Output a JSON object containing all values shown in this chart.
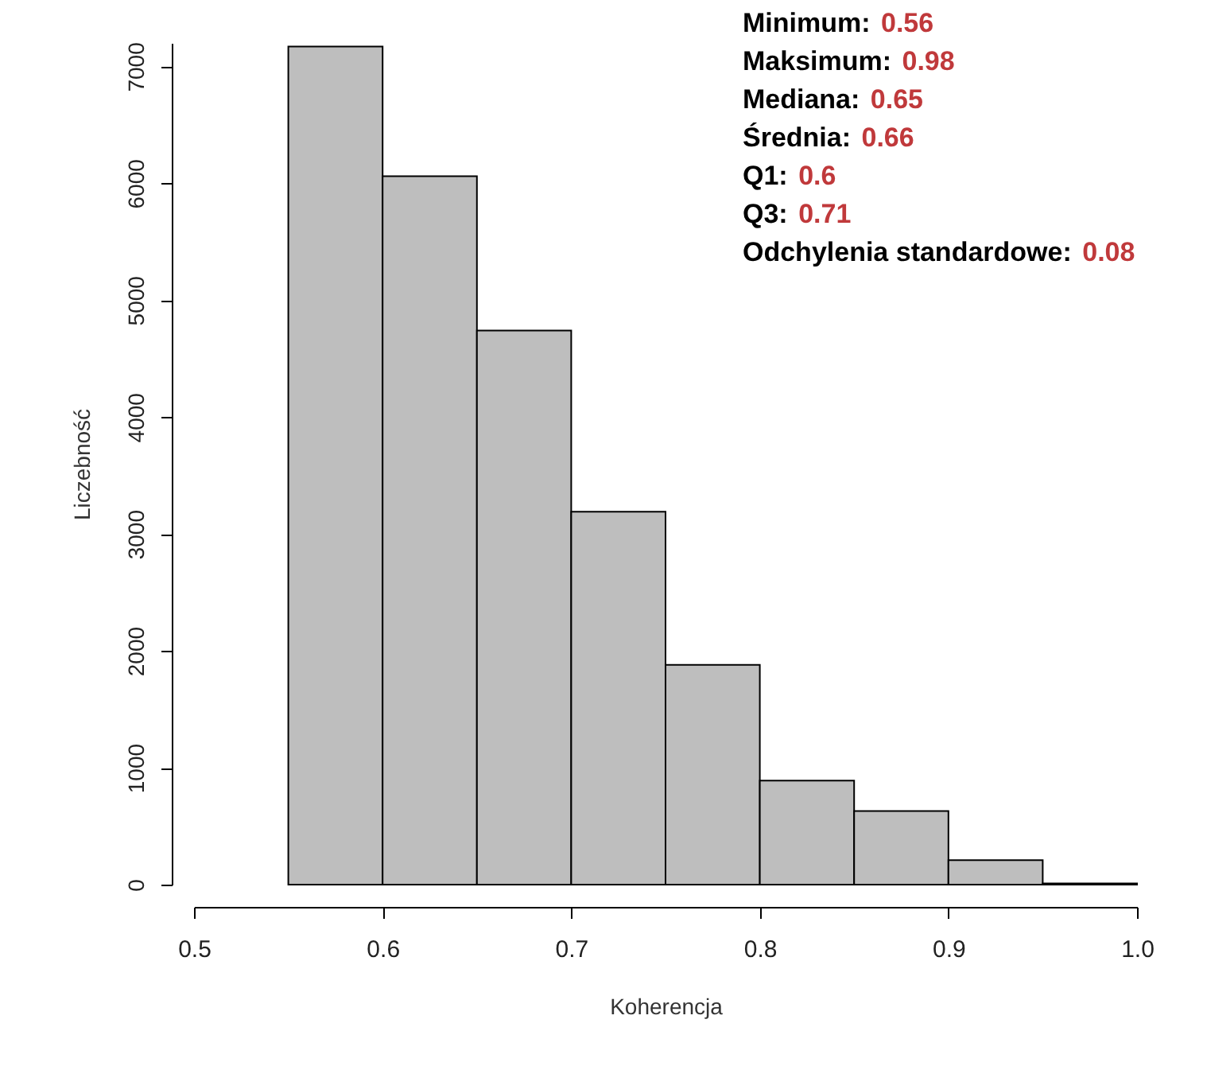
{
  "chart_data": {
    "type": "histogram",
    "bins": [
      0.55,
      0.6,
      0.65,
      0.7,
      0.75,
      0.8,
      0.85,
      0.9,
      0.95,
      1.0
    ],
    "values": [
      7170,
      6060,
      4740,
      3190,
      1880,
      890,
      630,
      210,
      10
    ],
    "color": "#bebebe",
    "xlabel": "Koherencja",
    "ylabel": "Liczebność",
    "xlim": [
      0.5,
      1.0
    ],
    "xticks": [
      0.5,
      0.6,
      0.7,
      0.8,
      0.9,
      {
        "value": 1.0,
        "label": "1.0"
      }
    ],
    "ylim": [
      0,
      7200
    ],
    "yticks": [
      0,
      1000,
      2000,
      3000,
      4000,
      5000,
      6000,
      7000
    ],
    "grid": false,
    "annotations": [
      "Minimum: 0.56",
      "Maksimum: 0.98",
      "Mediana: 0.65",
      "Średnia: 0.66",
      "Q1: 0.6",
      "Q3: 0.71",
      "Odchylenia standardowe: 0.08"
    ]
  }
}
